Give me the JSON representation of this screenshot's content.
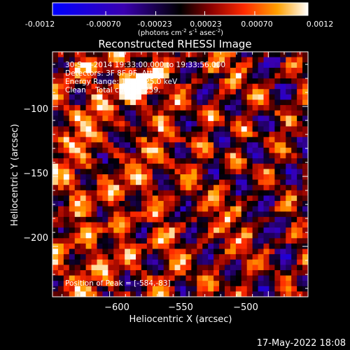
{
  "colorbar": {
    "ticks": [
      "-0.0012",
      "-0.00070",
      "-0.00023",
      "0.00023",
      "0.00070",
      "0.0012"
    ],
    "units_prefix": "(photons cm",
    "units_exp1": "-2",
    "units_mid": " s",
    "units_exp2": "-1",
    "units_mid2": " asec",
    "units_exp3": "-2",
    "units_suffix": ")",
    "range": [
      -0.0012,
      0.0012
    ],
    "colors": [
      "#0000ff",
      "#3a00b0",
      "#000000",
      "#8b0000",
      "#ff2a00",
      "#ffa000",
      "#ffffff"
    ]
  },
  "chart_data": {
    "type": "heatmap",
    "title": "Reconstructed RHESSI Image",
    "xlabel": "Heliocentric X (arcsec)",
    "ylabel": "Heliocentric Y (arcsec)",
    "xlim": [
      -636,
      -475
    ],
    "ylim": [
      -236,
      -61
    ],
    "xticks": [
      -600,
      -550,
      -500
    ],
    "yticks": [
      -100,
      -150,
      -200
    ],
    "xtick_labels": [
      "−600",
      "−550",
      "−500"
    ],
    "ytick_labels": [
      "−100",
      "−150",
      "−200"
    ],
    "annotations": [
      "30-Sep-2014 19:33:00.000 to 19:33:56.000",
      "Detectors: 3F 8F 9F, Att 0",
      "Energy Range: 12.0 - 25.0 keV",
      "Clean    Total counts: 259.",
      "Position of Peak = [-584,-83]"
    ],
    "peak": [
      -584,
      -83
    ],
    "grid": false,
    "legend": "none"
  },
  "footer": {
    "date": "17-May-2022 18:08"
  }
}
